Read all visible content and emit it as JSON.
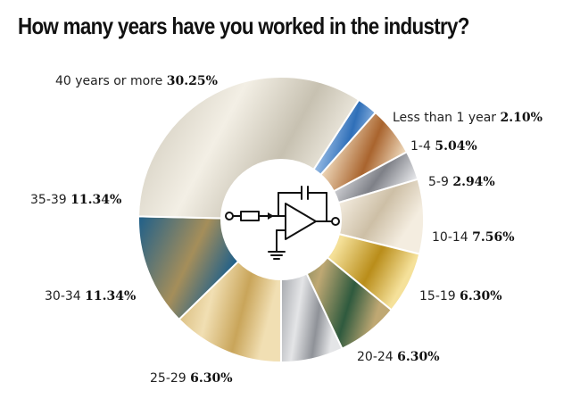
{
  "title": "How many years have you worked in the industry?",
  "chart_data": {
    "type": "pie",
    "title": "How many years have you worked in the industry?",
    "donut": true,
    "center_icon": "op-amp-integrator-circuit-icon",
    "slices": [
      {
        "label": "Less than 1 year",
        "pct_text": "2.10%",
        "value": 2.1,
        "color_a": "#2f6fb8",
        "color_b": "#a9c8ec"
      },
      {
        "label": "1-4",
        "pct_text": "5.04%",
        "value": 5.04,
        "color_a": "#a9642e",
        "color_b": "#f1ddc0"
      },
      {
        "label": "5-9",
        "pct_text": "2.94%",
        "value": 2.94,
        "color_a": "#7e8087",
        "color_b": "#e6e7ea"
      },
      {
        "label": "10-14",
        "pct_text": "7.56%",
        "value": 7.56,
        "color_a": "#cdbfa6",
        "color_b": "#f4ede0"
      },
      {
        "label": "15-19",
        "pct_text": "6.30%",
        "value": 6.3,
        "color_a": "#b98d1a",
        "color_b": "#f5e19a"
      },
      {
        "label": "20-24",
        "pct_text": "6.30%",
        "value": 6.3,
        "color_a": "#2f5a3e",
        "color_b": "#bfa873"
      },
      {
        "label": "25-29",
        "pct_text": "6.30%",
        "value": 6.3,
        "color_a": "#8f9298",
        "color_b": "#e4e5e7"
      },
      {
        "label": "30-34",
        "pct_text": "11.34%",
        "value": 11.34,
        "color_a": "#c9a55a",
        "color_b": "#f1dfb3"
      },
      {
        "label": "35-39",
        "pct_text": "11.34%",
        "value": 11.34,
        "color_a": "#1e5f8a",
        "color_b": "#a58e5a"
      },
      {
        "label": "40 years or more",
        "pct_text": "30.25%",
        "value": 30.25,
        "color_a": "#c7c1b1",
        "color_b": "#f3efe5"
      }
    ]
  }
}
